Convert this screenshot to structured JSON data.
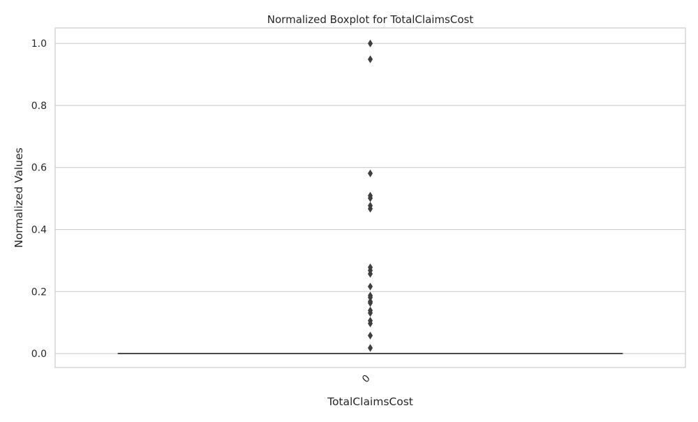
{
  "chart_data": {
    "type": "box",
    "title": "Normalized Boxplot for TotalClaimsCost",
    "xlabel": "TotalClaimsCost",
    "ylabel": "Normalized Values",
    "categories": [
      "0"
    ],
    "ylim": [
      -0.045,
      1.05
    ],
    "yticks": [
      {
        "value": 0.0,
        "label": "0.0"
      },
      {
        "value": 0.2,
        "label": "0.2"
      },
      {
        "value": 0.4,
        "label": "0.4"
      },
      {
        "value": 0.6,
        "label": "0.6"
      },
      {
        "value": 0.8,
        "label": "0.8"
      },
      {
        "value": 1.0,
        "label": "1.0"
      }
    ],
    "grid": true,
    "box": {
      "min": 0.0,
      "q1": 0.0,
      "median": 0.0,
      "q3": 0.0,
      "max": 0.0
    },
    "outliers": [
      1.0,
      0.949,
      0.581,
      0.509,
      0.501,
      0.477,
      0.467,
      0.278,
      0.268,
      0.257,
      0.216,
      0.187,
      0.181,
      0.168,
      0.163,
      0.139,
      0.131,
      0.106,
      0.097,
      0.058,
      0.018
    ],
    "colors": {
      "box_line": "#3f3f3f",
      "outlier": "#3f3f3f",
      "grid": "#cccccc",
      "frame": "#cccccc"
    }
  }
}
